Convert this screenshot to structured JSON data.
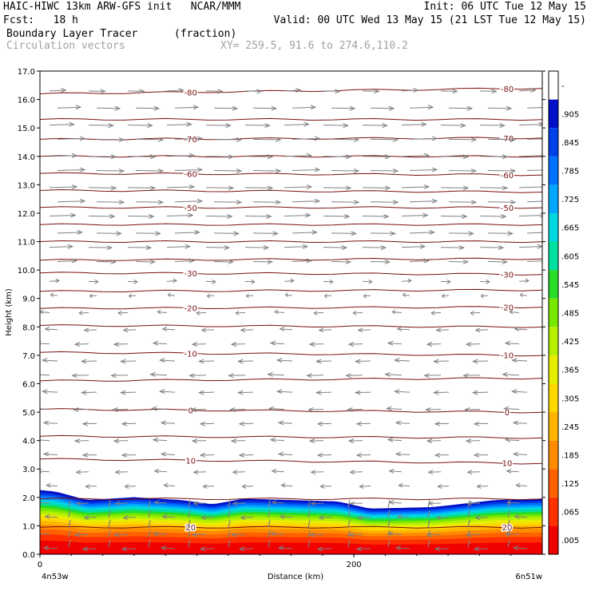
{
  "header": {
    "line1_left": "HAIC-HIWC 13km ARW-GFS init   NCAR/MMM",
    "line1_right": "Init: 06 UTC Tue 12 May 15",
    "line2_left": "Fcst:   18 h",
    "line2_right": "Valid: 00 UTC Wed 13 May 15 (21 LST Tue 12 May 15)",
    "line3_left": "Boundary Layer Tracer",
    "line3_unit": "(fraction)",
    "line4_left": "Circulation vectors",
    "line4_xy": "XY= 259.5, 91.6 to 274.6,110.2"
  },
  "colors": {
    "contour": "#7a1010",
    "vector": "#808080",
    "colorbar": [
      "#f00000",
      "#ff3000",
      "#ff6000",
      "#ff8c00",
      "#ffb400",
      "#ffd800",
      "#e6ee00",
      "#b4f000",
      "#78e800",
      "#28dc28",
      "#00e0a0",
      "#00d8e0",
      "#00a8ff",
      "#0070ff",
      "#0040e8",
      "#0010c8",
      "#ffffff"
    ]
  },
  "chart_data": {
    "type": "contour",
    "title": "Boundary Layer Tracer",
    "units": "(fraction)",
    "xlabel": "Distance (km)",
    "ylabel": "Height (km)",
    "xlim": [
      0,
      320
    ],
    "ylim": [
      0,
      17
    ],
    "x_ticks": [
      {
        "value": 0,
        "label": "0"
      },
      {
        "value": 200,
        "label": "200"
      }
    ],
    "x_endpoints": {
      "left": "4n53w",
      "right": "6n51w"
    },
    "y_ticks": [
      "0.0",
      "1.0",
      "2.0",
      "3.0",
      "4.0",
      "5.0",
      "6.0",
      "7.0",
      "8.0",
      "9.0",
      "10.0",
      "11.0",
      "12.0",
      "13.0",
      "14.0",
      "15.0",
      "16.0",
      "17.0"
    ],
    "colorbar_labels": [
      ".005",
      ".065",
      ".125",
      ".185",
      ".245",
      ".305",
      ".365",
      ".425",
      ".485",
      ".545",
      ".605",
      ".665",
      ".725",
      ".785",
      ".845",
      ".905",
      "-"
    ],
    "tracer_top_km": [
      {
        "x": 0,
        "h": 2.25
      },
      {
        "x": 10,
        "h": 2.2
      },
      {
        "x": 30,
        "h": 1.9
      },
      {
        "x": 60,
        "h": 2.0
      },
      {
        "x": 90,
        "h": 1.9
      },
      {
        "x": 110,
        "h": 1.75
      },
      {
        "x": 130,
        "h": 1.95
      },
      {
        "x": 160,
        "h": 1.9
      },
      {
        "x": 190,
        "h": 1.85
      },
      {
        "x": 210,
        "h": 1.6
      },
      {
        "x": 250,
        "h": 1.65
      },
      {
        "x": 290,
        "h": 1.9
      },
      {
        "x": 320,
        "h": 1.95
      }
    ],
    "temperature_contours": [
      {
        "label": "20",
        "heights": [
          0.95,
          0.95
        ]
      },
      {
        "label": "10",
        "heights": [
          3.35,
          3.2
        ]
      },
      {
        "label": "0",
        "heights": [
          5.1,
          5.0
        ]
      },
      {
        "label": "-10",
        "heights": [
          7.1,
          7.0
        ]
      },
      {
        "label": "-20",
        "heights": [
          8.65,
          8.7
        ]
      },
      {
        "label": "-30",
        "heights": [
          9.9,
          9.85
        ]
      },
      {
        "label": "-50",
        "heights": [
          12.2,
          12.2
        ]
      },
      {
        "label": "-60",
        "heights": [
          13.4,
          13.35
        ]
      },
      {
        "label": "-70",
        "heights": [
          14.6,
          14.65
        ]
      },
      {
        "label": "-80",
        "heights": [
          16.2,
          16.4
        ]
      }
    ],
    "unlabeled_contours": [
      {
        "heights": [
          1.95,
          1.95
        ]
      },
      {
        "heights": [
          4.15,
          4.1
        ]
      },
      {
        "heights": [
          6.1,
          6.2
        ]
      },
      {
        "heights": [
          8.05,
          8.0
        ]
      },
      {
        "heights": [
          9.25,
          9.3
        ]
      },
      {
        "heights": [
          10.35,
          10.4
        ]
      },
      {
        "heights": [
          11.0,
          11.0
        ]
      },
      {
        "heights": [
          11.6,
          11.6
        ]
      },
      {
        "heights": [
          12.8,
          12.75
        ]
      },
      {
        "heights": [
          14.0,
          14.0
        ]
      },
      {
        "heights": [
          15.3,
          15.3
        ]
      }
    ],
    "wind_levels": [
      {
        "h": 16.3,
        "dir": 1,
        "len": 0.6
      },
      {
        "h": 15.7,
        "dir": 1,
        "len": 0.85
      },
      {
        "h": 15.1,
        "dir": 1,
        "len": 0.9
      },
      {
        "h": 14.6,
        "dir": 1,
        "len": 1.0
      },
      {
        "h": 14.0,
        "dir": 1,
        "len": 1.0
      },
      {
        "h": 13.5,
        "dir": 1,
        "len": 1.0
      },
      {
        "h": 12.9,
        "dir": 1,
        "len": 1.0
      },
      {
        "h": 12.4,
        "dir": 1,
        "len": 1.0
      },
      {
        "h": 11.9,
        "dir": 1,
        "len": 0.95
      },
      {
        "h": 11.3,
        "dir": 1,
        "len": 0.9
      },
      {
        "h": 10.8,
        "dir": 1,
        "len": 0.85
      },
      {
        "h": 10.3,
        "dir": 1,
        "len": 0.7
      },
      {
        "h": 9.6,
        "dir": 1,
        "len": 0.35
      },
      {
        "h": 9.1,
        "dir": -1,
        "len": 0.25
      },
      {
        "h": 8.5,
        "dir": -1,
        "len": 0.35
      },
      {
        "h": 7.9,
        "dir": -1,
        "len": 0.45
      },
      {
        "h": 7.4,
        "dir": -1,
        "len": 0.5
      },
      {
        "h": 6.8,
        "dir": -1,
        "len": 0.55
      },
      {
        "h": 6.3,
        "dir": -1,
        "len": 0.6
      },
      {
        "h": 5.7,
        "dir": -1,
        "len": 0.55
      },
      {
        "h": 5.1,
        "dir": -1,
        "len": 0.55
      },
      {
        "h": 4.6,
        "dir": -1,
        "len": 0.5
      },
      {
        "h": 4.0,
        "dir": -1,
        "len": 0.5
      },
      {
        "h": 3.5,
        "dir": -1,
        "len": 0.5
      },
      {
        "h": 2.9,
        "dir": -1,
        "len": 0.45
      },
      {
        "h": 2.4,
        "dir": -1,
        "len": 0.4
      },
      {
        "h": 1.8,
        "dir": -1,
        "len": 0.45
      },
      {
        "h": 1.3,
        "dir": -1,
        "len": 0.45
      },
      {
        "h": 0.7,
        "dir": -1,
        "len": 0.5
      },
      {
        "h": 0.2,
        "dir": -1,
        "len": 0.5
      }
    ]
  }
}
